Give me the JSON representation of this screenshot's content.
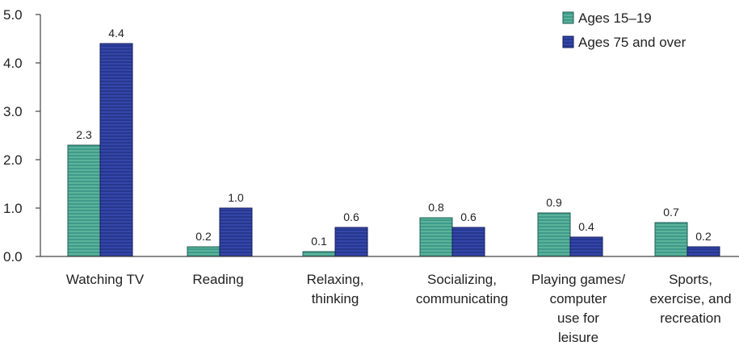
{
  "chart_data": {
    "type": "bar",
    "title": "",
    "xlabel": "",
    "ylabel": "",
    "ylim": [
      0,
      5
    ],
    "yticks": [
      "0.0",
      "1.0",
      "2.0",
      "3.0",
      "4.0",
      "5.0"
    ],
    "grid": false,
    "legend_position": "top-right",
    "categories": [
      [
        "Watching TV"
      ],
      [
        "Reading"
      ],
      [
        "Relaxing,",
        "thinking"
      ],
      [
        "Socializing,",
        "communicating"
      ],
      [
        "Playing games/",
        "computer",
        "use for",
        "leisure"
      ],
      [
        "Sports,",
        "exercise, and",
        "recreation"
      ]
    ],
    "series": [
      {
        "name": "Ages 15–19",
        "values": [
          2.3,
          0.2,
          0.1,
          0.8,
          0.9,
          0.7
        ],
        "labels": [
          "2.3",
          "0.2",
          "0.1",
          "0.8",
          "0.9",
          "0.7"
        ],
        "color": "#3f9a8a"
      },
      {
        "name": "Ages 75 and over",
        "values": [
          4.4,
          1.0,
          0.6,
          0.6,
          0.4,
          0.2
        ],
        "labels": [
          "4.4",
          "1.0",
          "0.6",
          "0.6",
          "0.4",
          "0.2"
        ],
        "color": "#2a3a9e"
      }
    ]
  }
}
